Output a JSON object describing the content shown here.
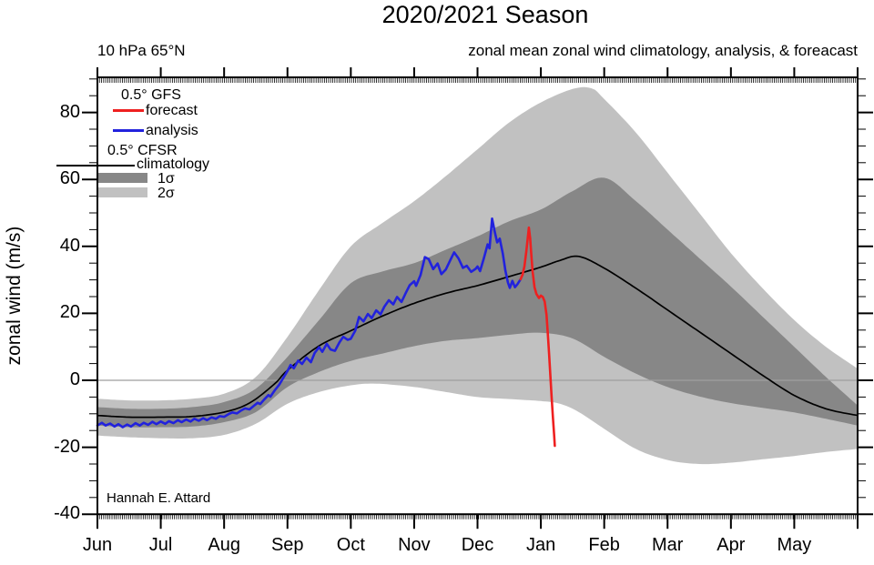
{
  "title": "2020/2021 Season",
  "subtitle_left": "10 hPa 65°N",
  "subtitle_right": "zonal mean zonal wind climatology, analysis, & foreacast",
  "ylabel": "zonal wind (m/s)",
  "attribution": "Hannah E. Attard",
  "legend": {
    "gfs_header": "0.5°  GFS",
    "forecast_label": "forecast",
    "analysis_label": "analysis",
    "cfsr_header": "0.5° CFSR",
    "climatology_label": "climatology",
    "sigma1_label": "1σ",
    "sigma2_label": "2σ"
  },
  "colors": {
    "forecast": "#ee2020",
    "analysis": "#2222dd",
    "climatology": "#000000",
    "sigma1_band": "#878787",
    "sigma2_band": "#c1c1c1",
    "zero_line": "#9e9e9e",
    "axis": "#000000"
  },
  "chart_data": {
    "type": "line",
    "title": "2020/2021 Season",
    "xlabel": "",
    "ylabel": "zonal wind (m/s)",
    "x_unit": "months since Jun 1",
    "xlim": [
      0,
      12
    ],
    "ylim": [
      -40,
      90.5
    ],
    "grid": false,
    "legend_position": "upper-left-inside",
    "month_labels": [
      "Jun",
      "Jul",
      "Aug",
      "Sep",
      "Oct",
      "Nov",
      "Dec",
      "Jan",
      "Feb",
      "Mar",
      "Apr",
      "May"
    ],
    "y_major_ticks": [
      -40,
      -20,
      0,
      20,
      40,
      60,
      80
    ],
    "y_minor_step": 5,
    "x_daily_tick_count": 365,
    "zero_line_y": 0,
    "series": [
      {
        "name": "climatology (0.5° CFSR)",
        "style": "smooth",
        "points": [
          [
            0,
            -10.5
          ],
          [
            0.5,
            -11
          ],
          [
            1,
            -11
          ],
          [
            1.5,
            -10.8
          ],
          [
            2,
            -9.5
          ],
          [
            2.4,
            -6.8
          ],
          [
            2.8,
            -1
          ],
          [
            3,
            3
          ],
          [
            3.5,
            10.3
          ],
          [
            4,
            14.8
          ],
          [
            4.5,
            19.2
          ],
          [
            5,
            23
          ],
          [
            5.5,
            26
          ],
          [
            6,
            28.3
          ],
          [
            6.5,
            31
          ],
          [
            7,
            33.8
          ],
          [
            7.3,
            35.8
          ],
          [
            7.6,
            37
          ],
          [
            8,
            33.5
          ],
          [
            8.5,
            27.5
          ],
          [
            9,
            21
          ],
          [
            9.5,
            14.5
          ],
          [
            10,
            8
          ],
          [
            10.5,
            1.5
          ],
          [
            11,
            -4.5
          ],
          [
            11.5,
            -8.5
          ],
          [
            12,
            -10.5
          ]
        ]
      },
      {
        "name": "analysis (0.5° GFS)",
        "style": "jagged",
        "points": [
          [
            0,
            -13.5
          ],
          [
            0.07,
            -12.7
          ],
          [
            0.13,
            -13.5
          ],
          [
            0.2,
            -12.9
          ],
          [
            0.27,
            -13.8
          ],
          [
            0.33,
            -13.1
          ],
          [
            0.4,
            -14
          ],
          [
            0.47,
            -13.2
          ],
          [
            0.53,
            -13.8
          ],
          [
            0.6,
            -12.8
          ],
          [
            0.67,
            -13.5
          ],
          [
            0.73,
            -12.7
          ],
          [
            0.8,
            -13.3
          ],
          [
            0.87,
            -12.4
          ],
          [
            0.93,
            -13.1
          ],
          [
            1.0,
            -12.3
          ],
          [
            1.07,
            -13
          ],
          [
            1.13,
            -12.2
          ],
          [
            1.2,
            -12.8
          ],
          [
            1.27,
            -11.9
          ],
          [
            1.33,
            -12.5
          ],
          [
            1.4,
            -11.7
          ],
          [
            1.47,
            -12.3
          ],
          [
            1.53,
            -11.5
          ],
          [
            1.6,
            -12.1
          ],
          [
            1.67,
            -11.3
          ],
          [
            1.73,
            -11.9
          ],
          [
            1.8,
            -11.1
          ],
          [
            1.87,
            -11.5
          ],
          [
            1.93,
            -10.7
          ],
          [
            2.0,
            -10.9
          ],
          [
            2.07,
            -10.1
          ],
          [
            2.13,
            -9.6
          ],
          [
            2.2,
            -9.9
          ],
          [
            2.27,
            -9
          ],
          [
            2.33,
            -8.4
          ],
          [
            2.4,
            -8.7
          ],
          [
            2.47,
            -7.6
          ],
          [
            2.53,
            -6.7
          ],
          [
            2.57,
            -7.1
          ],
          [
            2.63,
            -5.8
          ],
          [
            2.7,
            -4.4
          ],
          [
            2.73,
            -4.9
          ],
          [
            2.8,
            -3
          ],
          [
            2.87,
            -1.3
          ],
          [
            2.93,
            0.6
          ],
          [
            3.0,
            2.8
          ],
          [
            3.05,
            4.6
          ],
          [
            3.1,
            3.6
          ],
          [
            3.17,
            5.9
          ],
          [
            3.23,
            4.9
          ],
          [
            3.3,
            6.8
          ],
          [
            3.37,
            5.4
          ],
          [
            3.43,
            8.2
          ],
          [
            3.5,
            9.9
          ],
          [
            3.55,
            8.5
          ],
          [
            3.62,
            10.9
          ],
          [
            3.68,
            9.2
          ],
          [
            3.75,
            8.8
          ],
          [
            3.82,
            11.3
          ],
          [
            3.88,
            13
          ],
          [
            3.95,
            12.1
          ],
          [
            4.0,
            12.4
          ],
          [
            4.07,
            14.8
          ],
          [
            4.13,
            18.9
          ],
          [
            4.2,
            17.6
          ],
          [
            4.27,
            19.8
          ],
          [
            4.33,
            18.6
          ],
          [
            4.4,
            20.9
          ],
          [
            4.47,
            19.7
          ],
          [
            4.53,
            22
          ],
          [
            4.6,
            23.9
          ],
          [
            4.67,
            22.7
          ],
          [
            4.73,
            24.9
          ],
          [
            4.8,
            23.4
          ],
          [
            4.87,
            26.2
          ],
          [
            4.93,
            28.4
          ],
          [
            5.0,
            29.6
          ],
          [
            5.03,
            28.2
          ],
          [
            5.1,
            31.4
          ],
          [
            5.17,
            36.8
          ],
          [
            5.23,
            36.2
          ],
          [
            5.3,
            33.2
          ],
          [
            5.37,
            34.9
          ],
          [
            5.43,
            31.7
          ],
          [
            5.5,
            33.1
          ],
          [
            5.57,
            35.9
          ],
          [
            5.63,
            38.2
          ],
          [
            5.7,
            36.4
          ],
          [
            5.77,
            33.6
          ],
          [
            5.83,
            34.2
          ],
          [
            5.9,
            32.4
          ],
          [
            5.97,
            33.3
          ],
          [
            6.0,
            34
          ],
          [
            6.04,
            32.6
          ],
          [
            6.1,
            36.5
          ],
          [
            6.16,
            40.6
          ],
          [
            6.19,
            39.4
          ],
          [
            6.23,
            48.3
          ],
          [
            6.27,
            44.5
          ],
          [
            6.31,
            41.2
          ],
          [
            6.35,
            42.3
          ],
          [
            6.4,
            37.8
          ],
          [
            6.44,
            32.8
          ],
          [
            6.48,
            29.2
          ],
          [
            6.51,
            27.6
          ],
          [
            6.55,
            29.7
          ],
          [
            6.59,
            27.8
          ],
          [
            6.63,
            28.7
          ],
          [
            6.68,
            30.2
          ]
        ]
      },
      {
        "name": "forecast (0.5° GFS)",
        "style": "jagged",
        "points": [
          [
            6.68,
            30.2
          ],
          [
            6.71,
            31.5
          ],
          [
            6.74,
            34
          ],
          [
            6.77,
            38.5
          ],
          [
            6.79,
            42
          ],
          [
            6.81,
            45.6
          ],
          [
            6.83,
            42.5
          ],
          [
            6.85,
            37.5
          ],
          [
            6.87,
            32.5
          ],
          [
            6.9,
            27.8
          ],
          [
            6.93,
            25.8
          ],
          [
            6.97,
            24.6
          ],
          [
            7.0,
            25.3
          ],
          [
            7.03,
            24.9
          ],
          [
            7.06,
            23.5
          ],
          [
            7.09,
            19.5
          ],
          [
            7.11,
            14
          ],
          [
            7.13,
            8
          ],
          [
            7.15,
            1.5
          ],
          [
            7.17,
            -5
          ],
          [
            7.19,
            -11
          ],
          [
            7.21,
            -16.5
          ],
          [
            7.22,
            -19.6
          ]
        ]
      }
    ],
    "bands": [
      {
        "name": "2σ climatology spread",
        "upper": [
          [
            0,
            -5.5
          ],
          [
            0.5,
            -6
          ],
          [
            1,
            -6
          ],
          [
            1.5,
            -5.5
          ],
          [
            2,
            -4
          ],
          [
            2.5,
            1
          ],
          [
            3,
            13
          ],
          [
            3.5,
            27
          ],
          [
            4,
            40
          ],
          [
            4.5,
            47
          ],
          [
            5,
            53.5
          ],
          [
            5.5,
            61
          ],
          [
            6,
            69
          ],
          [
            6.5,
            77
          ],
          [
            7,
            83
          ],
          [
            7.5,
            87
          ],
          [
            7.8,
            87.2
          ],
          [
            8,
            84
          ],
          [
            8.5,
            74
          ],
          [
            9,
            62
          ],
          [
            9.5,
            50
          ],
          [
            10,
            38
          ],
          [
            10.5,
            27.5
          ],
          [
            11,
            18
          ],
          [
            11.5,
            10
          ],
          [
            12,
            3.5
          ]
        ],
        "lower": [
          [
            0,
            -16.5
          ],
          [
            0.5,
            -17
          ],
          [
            1,
            -17.3
          ],
          [
            1.5,
            -17.3
          ],
          [
            2,
            -16.3
          ],
          [
            2.5,
            -13
          ],
          [
            3,
            -7
          ],
          [
            3.5,
            -3.5
          ],
          [
            4,
            -1.5
          ],
          [
            4.4,
            -1
          ],
          [
            5,
            -2
          ],
          [
            5.5,
            -3.5
          ],
          [
            6,
            -5
          ],
          [
            6.5,
            -5.6
          ],
          [
            7,
            -6.2
          ],
          [
            7.3,
            -7
          ],
          [
            7.6,
            -9.5
          ],
          [
            8,
            -14.5
          ],
          [
            8.5,
            -20.5
          ],
          [
            9,
            -23.8
          ],
          [
            9.5,
            -25
          ],
          [
            10,
            -24.6
          ],
          [
            10.5,
            -23.6
          ],
          [
            11,
            -22.6
          ],
          [
            11.5,
            -21.4
          ],
          [
            12,
            -20.5
          ]
        ]
      },
      {
        "name": "1σ climatology spread",
        "upper": [
          [
            0,
            -8
          ],
          [
            0.5,
            -8.5
          ],
          [
            1,
            -8.5
          ],
          [
            1.5,
            -8
          ],
          [
            2,
            -6.5
          ],
          [
            2.5,
            -2.5
          ],
          [
            3,
            7
          ],
          [
            3.5,
            18
          ],
          [
            4,
            29
          ],
          [
            4.5,
            32.5
          ],
          [
            5,
            35
          ],
          [
            5.5,
            39
          ],
          [
            6,
            43
          ],
          [
            6.5,
            47.5
          ],
          [
            7,
            51
          ],
          [
            7.5,
            56.5
          ],
          [
            8,
            60.5
          ],
          [
            8.5,
            53.5
          ],
          [
            9,
            45
          ],
          [
            9.5,
            36.5
          ],
          [
            10,
            28
          ],
          [
            10.5,
            19
          ],
          [
            11,
            10
          ],
          [
            11.5,
            1
          ],
          [
            12,
            -7.5
          ]
        ],
        "lower": [
          [
            0,
            -13.5
          ],
          [
            0.5,
            -14
          ],
          [
            1,
            -14
          ],
          [
            1.5,
            -13.8
          ],
          [
            2,
            -12.5
          ],
          [
            2.5,
            -9.5
          ],
          [
            3,
            -2
          ],
          [
            3.5,
            2.5
          ],
          [
            4,
            5.8
          ],
          [
            4.5,
            8
          ],
          [
            5,
            10.2
          ],
          [
            5.5,
            11.8
          ],
          [
            6,
            12.6
          ],
          [
            6.5,
            13.6
          ],
          [
            7,
            14.2
          ],
          [
            7.5,
            12.5
          ],
          [
            8,
            7
          ],
          [
            8.5,
            2
          ],
          [
            9,
            -2
          ],
          [
            9.5,
            -4.8
          ],
          [
            10,
            -6.8
          ],
          [
            10.5,
            -8.2
          ],
          [
            11,
            -9.6
          ],
          [
            11.5,
            -11.5
          ],
          [
            12,
            -13.5
          ]
        ]
      }
    ]
  }
}
